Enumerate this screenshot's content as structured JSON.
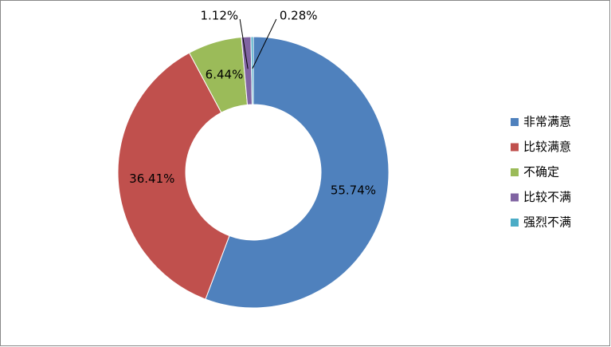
{
  "chart_data": {
    "type": "donut",
    "categories": [
      "非常满意",
      "比较满意",
      "不确定",
      "比较不满",
      "强烈不满"
    ],
    "values": [
      55.74,
      36.41,
      6.44,
      1.12,
      0.28
    ],
    "value_labels": [
      "55.74%",
      "36.41%",
      "6.44%",
      "1.12%",
      "0.28%"
    ],
    "colors": [
      "#4f81bd",
      "#c0504d",
      "#9bbb59",
      "#8064a2",
      "#4bacc6"
    ],
    "legend": "right"
  }
}
